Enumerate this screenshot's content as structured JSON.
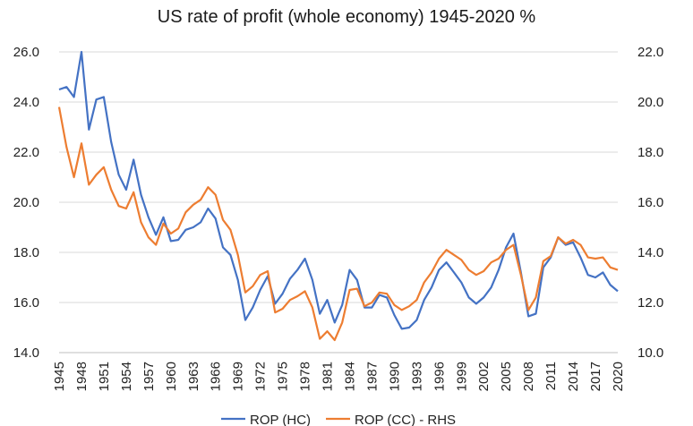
{
  "chart_data": {
    "type": "line",
    "title": "US rate of profit (whole economy) 1945-2020 %",
    "x": [
      1945,
      1946,
      1947,
      1948,
      1949,
      1950,
      1951,
      1952,
      1953,
      1954,
      1955,
      1956,
      1957,
      1958,
      1959,
      1960,
      1961,
      1962,
      1963,
      1964,
      1965,
      1966,
      1967,
      1968,
      1969,
      1970,
      1971,
      1972,
      1973,
      1974,
      1975,
      1976,
      1977,
      1978,
      1979,
      1980,
      1981,
      1982,
      1983,
      1984,
      1985,
      1986,
      1987,
      1988,
      1989,
      1990,
      1991,
      1992,
      1993,
      1994,
      1995,
      1996,
      1997,
      1998,
      1999,
      2000,
      2001,
      2002,
      2003,
      2004,
      2005,
      2006,
      2007,
      2008,
      2009,
      2010,
      2011,
      2012,
      2013,
      2014,
      2015,
      2016,
      2017,
      2018,
      2019,
      2020
    ],
    "x_tick_labels": [
      "1945",
      "1948",
      "1951",
      "1954",
      "1957",
      "1960",
      "1963",
      "1966",
      "1969",
      "1972",
      "1975",
      "1978",
      "1981",
      "1984",
      "1987",
      "1990",
      "1993",
      "1996",
      "1999",
      "2002",
      "2005",
      "2008",
      "2011",
      "2014",
      "2017",
      "2020"
    ],
    "y_left": {
      "lim": [
        14.0,
        26.0
      ],
      "ticks": [
        "14.0",
        "16.0",
        "18.0",
        "20.0",
        "22.0",
        "24.0",
        "26.0"
      ]
    },
    "y_right": {
      "lim": [
        10.0,
        22.0
      ],
      "ticks": [
        "10.0",
        "12.0",
        "14.0",
        "16.0",
        "18.0",
        "20.0",
        "22.0"
      ]
    },
    "grid": "horizontal",
    "legend_position": "bottom",
    "series": [
      {
        "name": "ROP (HC)",
        "axis": "left",
        "color": "#4472C4",
        "values": [
          24.5,
          24.6,
          24.2,
          26.0,
          22.9,
          24.1,
          24.2,
          22.4,
          21.1,
          20.5,
          21.7,
          20.3,
          19.4,
          18.7,
          19.4,
          18.45,
          18.5,
          18.9,
          19.0,
          19.2,
          19.75,
          19.35,
          18.2,
          17.9,
          16.9,
          15.3,
          15.8,
          16.5,
          17.05,
          15.95,
          16.35,
          16.95,
          17.3,
          17.75,
          16.9,
          15.55,
          16.1,
          15.2,
          15.9,
          17.3,
          16.9,
          15.8,
          15.8,
          16.3,
          16.2,
          15.5,
          14.95,
          15.0,
          15.3,
          16.1,
          16.6,
          17.3,
          17.6,
          17.2,
          16.8,
          16.2,
          15.95,
          16.2,
          16.6,
          17.3,
          18.2,
          18.75,
          17.2,
          15.45,
          15.55,
          17.4,
          17.8,
          18.6,
          18.3,
          18.4,
          17.8,
          17.1,
          17.0,
          17.2,
          16.7,
          16.45
        ]
      },
      {
        "name": "ROP (CC) - RHS",
        "axis": "right",
        "color": "#ED7D31",
        "values": [
          19.8,
          18.2,
          17.0,
          18.35,
          16.7,
          17.1,
          17.4,
          16.5,
          15.85,
          15.75,
          16.4,
          15.2,
          14.6,
          14.3,
          15.15,
          14.75,
          14.95,
          15.6,
          15.9,
          16.1,
          16.6,
          16.3,
          15.3,
          14.9,
          13.9,
          12.4,
          12.65,
          13.1,
          13.25,
          11.6,
          11.75,
          12.1,
          12.25,
          12.45,
          11.8,
          10.55,
          10.85,
          10.5,
          11.2,
          12.5,
          12.55,
          11.85,
          12.0,
          12.4,
          12.35,
          11.9,
          11.7,
          11.85,
          12.1,
          12.8,
          13.2,
          13.75,
          14.1,
          13.9,
          13.7,
          13.3,
          13.1,
          13.25,
          13.6,
          13.75,
          14.1,
          14.3,
          13.1,
          11.7,
          12.2,
          13.65,
          13.85,
          14.6,
          14.35,
          14.5,
          14.3,
          13.8,
          13.75,
          13.8,
          13.4,
          13.3
        ]
      }
    ]
  }
}
